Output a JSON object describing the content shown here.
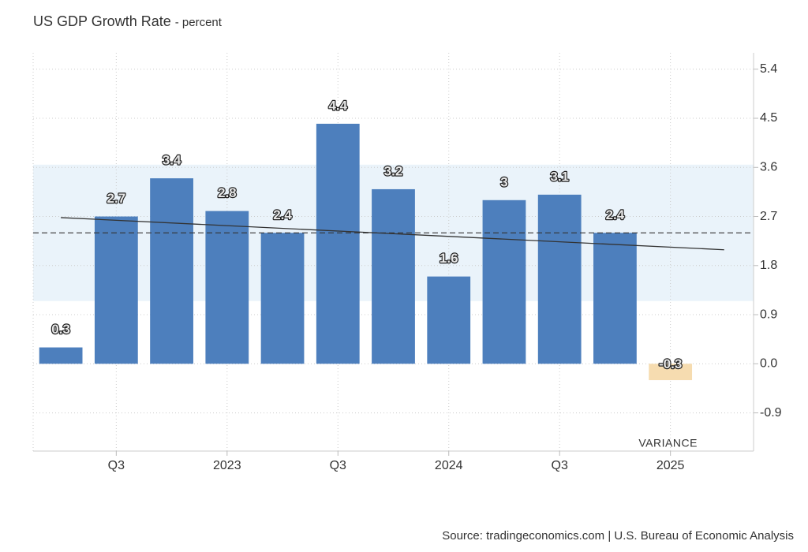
{
  "chart_data": {
    "type": "bar",
    "title": "US GDP Growth Rate",
    "subtitle": "- percent",
    "categories": [
      null,
      "Q3",
      null,
      "2023",
      null,
      "Q3",
      null,
      "2024",
      null,
      "Q3",
      null,
      "2025"
    ],
    "values": [
      0.3,
      2.7,
      3.4,
      2.8,
      2.4,
      4.4,
      3.2,
      1.6,
      3,
      3.1,
      2.4,
      -0.3
    ],
    "color": "#4d7fbd",
    "negative_color": "#f6dcb0",
    "ylim": [
      -1.6,
      5.7
    ],
    "yticks": [
      -0.9,
      {
        "value": 0,
        "label": "0.0"
      },
      0.9,
      1.8,
      2.7,
      3.6,
      4.5,
      5.4
    ],
    "grid": true,
    "range_band": [
      1.15,
      3.65
    ],
    "range_color": "#eaf3fa",
    "average": 2.4,
    "trend_line": [
      2.68,
      2.09
    ],
    "annotation": "VARIANCE",
    "source": "Source: tradingeconomics.com | U.S. Bureau of Economic Analysis"
  }
}
